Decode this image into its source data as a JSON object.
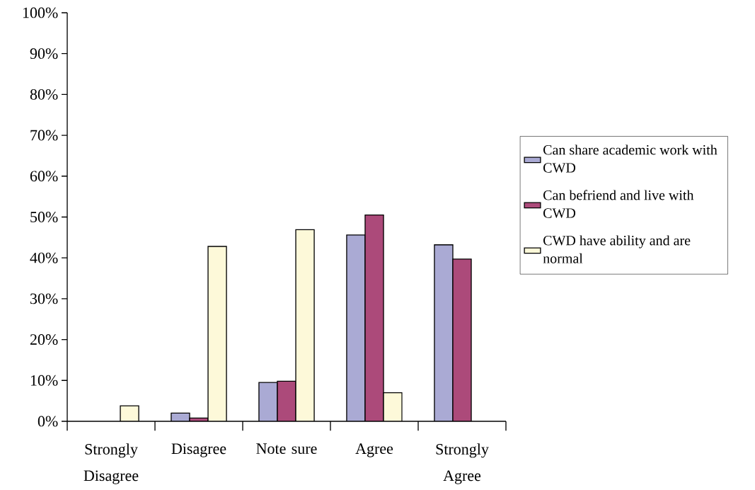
{
  "chart_data": {
    "type": "bar",
    "categories": [
      "Strongly Disagree",
      "Disagree",
      "Note sure",
      "Agree",
      "Strongly Agree"
    ],
    "series": [
      {
        "name": "Can share academic work with CWD",
        "color": "#aaaad4",
        "values": [
          null,
          2.0,
          9.5,
          45.6,
          43.2
        ]
      },
      {
        "name": "Can befriend and live with CWD",
        "color": "#ac4a7a",
        "values": [
          null,
          0.8,
          9.8,
          50.5,
          39.7
        ]
      },
      {
        "name": "CWD have ability and are normal",
        "color": "#fdf9d9",
        "values": [
          3.8,
          42.8,
          46.9,
          7.0,
          null
        ]
      }
    ],
    "ylim": [
      0,
      100
    ],
    "yticks": [
      {
        "value": 0,
        "label": "0%"
      },
      {
        "value": 10,
        "label": "10%"
      },
      {
        "value": 20,
        "label": "20%"
      },
      {
        "value": 30,
        "label": "30%"
      },
      {
        "value": 40,
        "label": "40%"
      },
      {
        "value": 50,
        "label": "50%"
      },
      {
        "value": 60,
        "label": "60%"
      },
      {
        "value": 70,
        "label": "70%"
      },
      {
        "value": 80,
        "label": "80%"
      },
      {
        "value": 90,
        "label": "90%"
      },
      {
        "value": 100,
        "label": "100%"
      }
    ],
    "legend": "right"
  }
}
